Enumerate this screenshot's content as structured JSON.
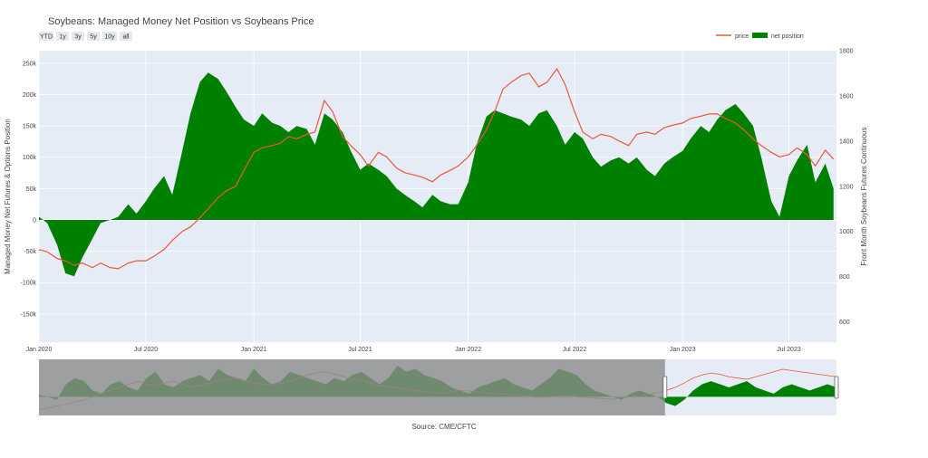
{
  "title": "Soybeans: Managed Money Net Position vs Soybeans Price",
  "range_buttons": [
    "YTD",
    "1y",
    "3y",
    "5y",
    "10y",
    "all"
  ],
  "source": "Source: CME/CFTC",
  "colors": {
    "plot_bg": "#e5ecf6",
    "price_line": "#ef553b",
    "net_fill": "#008000",
    "grid": "#ffffff",
    "rangeslider_mask": "#8c8c8c"
  },
  "chart_data": {
    "type": "area",
    "title": "Soybeans: Managed Money Net Position vs Soybeans Price",
    "xlabel": "",
    "ylabel": "Managed Money Net Futures & Options Position",
    "y2label": "Front Month Soybeans Futures Continuous",
    "legend_position": "top-right",
    "grid": true,
    "x_ticks": [
      "Jan 2020",
      "Jul 2020",
      "Jan 2021",
      "Jul 2021",
      "Jan 2022",
      "Jul 2022",
      "Jan 2023",
      "Jul 2023"
    ],
    "y_ticks": [
      "250k",
      "200k",
      "150k",
      "100k",
      "50k",
      "0",
      "-50k",
      "-100k",
      "-150k"
    ],
    "y2_ticks": [
      "1800",
      "1600",
      "1400",
      "1200",
      "1000",
      "800",
      "600"
    ],
    "ylim": [
      -195000,
      270000
    ],
    "y2lim": [
      510,
      1800
    ],
    "x": [
      "2020-01-01",
      "2020-01-15",
      "2020-02-01",
      "2020-02-15",
      "2020-03-01",
      "2020-03-15",
      "2020-04-01",
      "2020-04-15",
      "2020-05-01",
      "2020-05-15",
      "2020-06-01",
      "2020-06-15",
      "2020-07-01",
      "2020-07-15",
      "2020-08-01",
      "2020-08-15",
      "2020-09-01",
      "2020-09-15",
      "2020-10-01",
      "2020-10-15",
      "2020-11-01",
      "2020-11-15",
      "2020-12-01",
      "2020-12-15",
      "2021-01-01",
      "2021-01-15",
      "2021-02-01",
      "2021-02-15",
      "2021-03-01",
      "2021-03-15",
      "2021-04-01",
      "2021-04-15",
      "2021-05-01",
      "2021-05-15",
      "2021-06-01",
      "2021-06-15",
      "2021-07-01",
      "2021-07-15",
      "2021-08-01",
      "2021-08-15",
      "2021-09-01",
      "2021-09-15",
      "2021-10-01",
      "2021-10-15",
      "2021-11-01",
      "2021-11-15",
      "2021-12-01",
      "2021-12-15",
      "2022-01-01",
      "2022-01-15",
      "2022-02-01",
      "2022-02-15",
      "2022-03-01",
      "2022-03-15",
      "2022-04-01",
      "2022-04-15",
      "2022-05-01",
      "2022-05-15",
      "2022-06-01",
      "2022-06-15",
      "2022-07-01",
      "2022-07-15",
      "2022-08-01",
      "2022-08-15",
      "2022-09-01",
      "2022-09-15",
      "2022-10-01",
      "2022-10-15",
      "2022-11-01",
      "2022-11-15",
      "2022-12-01",
      "2022-12-15",
      "2023-01-01",
      "2023-01-15",
      "2023-02-01",
      "2023-02-15",
      "2023-03-01",
      "2023-03-15",
      "2023-04-01",
      "2023-04-15",
      "2023-05-01",
      "2023-05-15",
      "2023-06-01",
      "2023-06-15",
      "2023-07-01",
      "2023-07-15",
      "2023-08-01",
      "2023-08-15",
      "2023-09-01",
      "2023-09-15"
    ],
    "series": [
      {
        "name": "net position",
        "axis": "left",
        "values": [
          5000,
          -5000,
          -40000,
          -85000,
          -90000,
          -60000,
          -30000,
          -5000,
          0,
          5000,
          25000,
          10000,
          30000,
          50000,
          70000,
          40000,
          110000,
          170000,
          220000,
          235000,
          225000,
          205000,
          180000,
          160000,
          150000,
          170000,
          155000,
          150000,
          140000,
          150000,
          145000,
          120000,
          170000,
          160000,
          140000,
          110000,
          80000,
          90000,
          80000,
          70000,
          50000,
          40000,
          30000,
          20000,
          40000,
          30000,
          25000,
          25000,
          60000,
          120000,
          165000,
          175000,
          170000,
          165000,
          160000,
          150000,
          170000,
          175000,
          150000,
          120000,
          140000,
          130000,
          100000,
          85000,
          95000,
          100000,
          90000,
          100000,
          80000,
          70000,
          90000,
          100000,
          110000,
          130000,
          150000,
          140000,
          160000,
          175000,
          185000,
          170000,
          150000,
          100000,
          30000,
          5000,
          70000,
          95000,
          120000,
          60000,
          90000,
          50000
        ]
      },
      {
        "name": "price",
        "axis": "right",
        "values": [
          920,
          910,
          880,
          870,
          850,
          860,
          840,
          860,
          840,
          835,
          860,
          870,
          870,
          890,
          920,
          960,
          1000,
          1020,
          1060,
          1100,
          1150,
          1180,
          1200,
          1270,
          1350,
          1370,
          1380,
          1390,
          1420,
          1410,
          1430,
          1440,
          1580,
          1530,
          1420,
          1380,
          1340,
          1290,
          1350,
          1330,
          1280,
          1260,
          1250,
          1240,
          1220,
          1250,
          1270,
          1290,
          1330,
          1380,
          1450,
          1530,
          1630,
          1660,
          1690,
          1700,
          1640,
          1660,
          1720,
          1650,
          1530,
          1440,
          1410,
          1430,
          1420,
          1400,
          1380,
          1430,
          1440,
          1430,
          1460,
          1470,
          1480,
          1500,
          1510,
          1520,
          1520,
          1500,
          1480,
          1450,
          1410,
          1380,
          1350,
          1330,
          1340,
          1370,
          1340,
          1290,
          1360,
          1320
        ]
      }
    ]
  },
  "rangeslider": {
    "type": "area",
    "net_position": [
      3000,
      0,
      -5000,
      20000,
      30000,
      25000,
      10000,
      5000,
      20000,
      25000,
      15000,
      10000,
      30000,
      40000,
      20000,
      15000,
      25000,
      30000,
      35000,
      25000,
      45000,
      35000,
      30000,
      25000,
      45000,
      30000,
      20000,
      25000,
      40000,
      35000,
      30000,
      25000,
      20000,
      30000,
      25000,
      35000,
      40000,
      30000,
      20000,
      30000,
      50000,
      40000,
      45000,
      35000,
      30000,
      25000,
      15000,
      10000,
      5000,
      15000,
      20000,
      25000,
      30000,
      20000,
      15000,
      10000,
      20000,
      30000,
      45000,
      40000,
      35000,
      20000,
      10000,
      5000,
      0,
      -5000,
      5000,
      10000,
      5000,
      0,
      -10000,
      -15000,
      -5000,
      10000,
      20000,
      25000,
      20000,
      15000,
      20000,
      25000,
      15000,
      10000,
      5000,
      15000,
      20000,
      15000,
      10000,
      15000,
      20000,
      15000
    ],
    "price": [
      700,
      720,
      750,
      780,
      820,
      850,
      900,
      960,
      1000,
      1050,
      1100,
      1150,
      1100,
      1080,
      1120,
      1150,
      1100,
      1060,
      1080,
      1120,
      1150,
      1180,
      1200,
      1160,
      1120,
      1100,
      1080,
      1120,
      1150,
      1200,
      1250,
      1280,
      1300,
      1260,
      1220,
      1180,
      1150,
      1120,
      1080,
      1060,
      1040,
      1020,
      1000,
      980,
      970,
      960,
      980,
      1000,
      990,
      980,
      960,
      950,
      940,
      930,
      920,
      900,
      890,
      900,
      910,
      920,
      900,
      890,
      880,
      870,
      860,
      880,
      900,
      920,
      940,
      960,
      1000,
      1050,
      1120,
      1200,
      1250,
      1280,
      1260,
      1220,
      1200,
      1180,
      1220,
      1260,
      1300,
      1340,
      1320,
      1300,
      1280,
      1260,
      1240,
      1220
    ],
    "y_range": [
      -30000,
      60000
    ],
    "y2_range": [
      600,
      1500
    ],
    "selection_start_fraction": 0.785
  }
}
